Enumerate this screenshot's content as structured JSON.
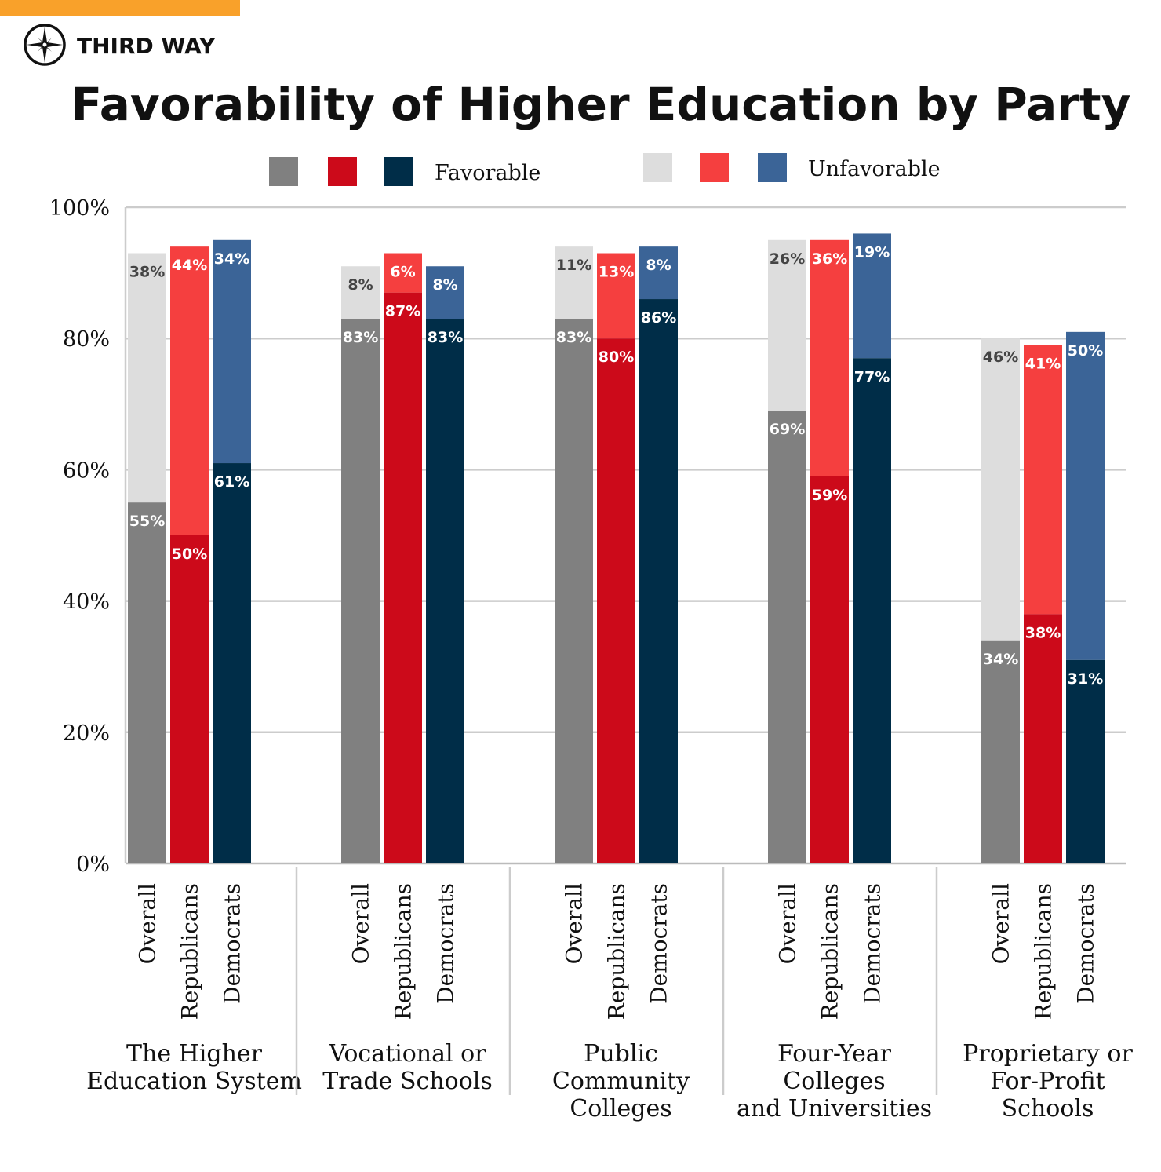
{
  "brand": {
    "name": "THIRD WAY",
    "accent": "#f9a12a"
  },
  "chart_data": {
    "type": "bar",
    "stacked": true,
    "title": "Favorability of Higher Education by Party",
    "legend": {
      "position": "top",
      "favorable_label": "Favorable",
      "unfavorable_label": "Unfavorable"
    },
    "ylim": [
      0,
      100
    ],
    "yticks": [
      "0%",
      "20%",
      "40%",
      "60%",
      "80%",
      "100%"
    ],
    "grid": true,
    "subcategories": [
      "Overall",
      "Republicans",
      "Democrats"
    ],
    "colors": {
      "Overall": {
        "favorable": "#808080",
        "unfavorable": "#dddddd",
        "fav_text": "#ffffff",
        "unfav_text": "#444444"
      },
      "Republicans": {
        "favorable": "#cc0a1a",
        "unfavorable": "#f53f3f",
        "fav_text": "#ffffff",
        "unfav_text": "#ffffff"
      },
      "Democrats": {
        "favorable": "#002d48",
        "unfavorable": "#3b6497",
        "fav_text": "#ffffff",
        "unfav_text": "#ffffff"
      }
    },
    "groups": [
      {
        "name": [
          "The Higher",
          "Education System"
        ],
        "favorable": [
          55,
          50,
          61
        ],
        "unfavorable": [
          38,
          44,
          34
        ]
      },
      {
        "name": [
          "Vocational or",
          "Trade Schools"
        ],
        "favorable": [
          83,
          87,
          83
        ],
        "unfavorable": [
          8,
          6,
          8
        ]
      },
      {
        "name": [
          "Public",
          "Community",
          "Colleges"
        ],
        "favorable": [
          83,
          80,
          86
        ],
        "unfavorable": [
          11,
          13,
          8
        ]
      },
      {
        "name": [
          "Four-Year",
          "Colleges",
          "and Universities"
        ],
        "favorable": [
          69,
          59,
          77
        ],
        "unfavorable": [
          26,
          36,
          19
        ]
      },
      {
        "name": [
          "Proprietary or",
          "For-Profit",
          "Schools"
        ],
        "favorable": [
          34,
          38,
          31
        ],
        "unfavorable": [
          46,
          41,
          50
        ]
      }
    ]
  }
}
